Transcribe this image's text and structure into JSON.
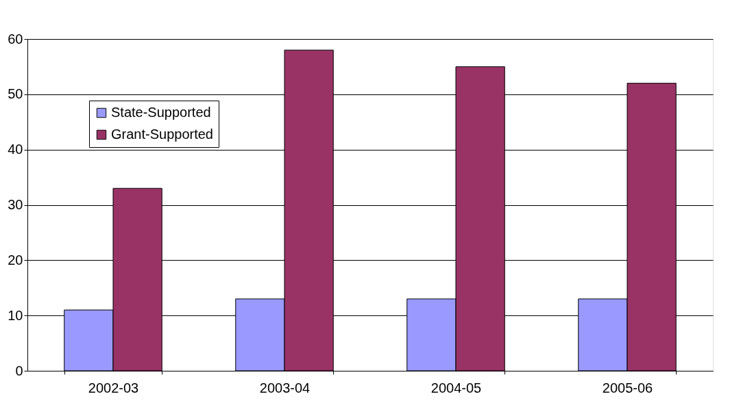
{
  "chart_data": {
    "type": "bar",
    "categories": [
      "2002-03",
      "2003-04",
      "2004-05",
      "2005-06"
    ],
    "series": [
      {
        "name": "State-Supported",
        "color": "#9999ff",
        "values": [
          11,
          13,
          13,
          13
        ]
      },
      {
        "name": "Grant-Supported",
        "color": "#993366",
        "values": [
          33,
          58,
          55,
          52
        ]
      }
    ],
    "ylim": [
      0,
      60
    ],
    "yticks": [
      0,
      10,
      20,
      30,
      40,
      50,
      60
    ],
    "grid": "y",
    "legend": "top left"
  }
}
